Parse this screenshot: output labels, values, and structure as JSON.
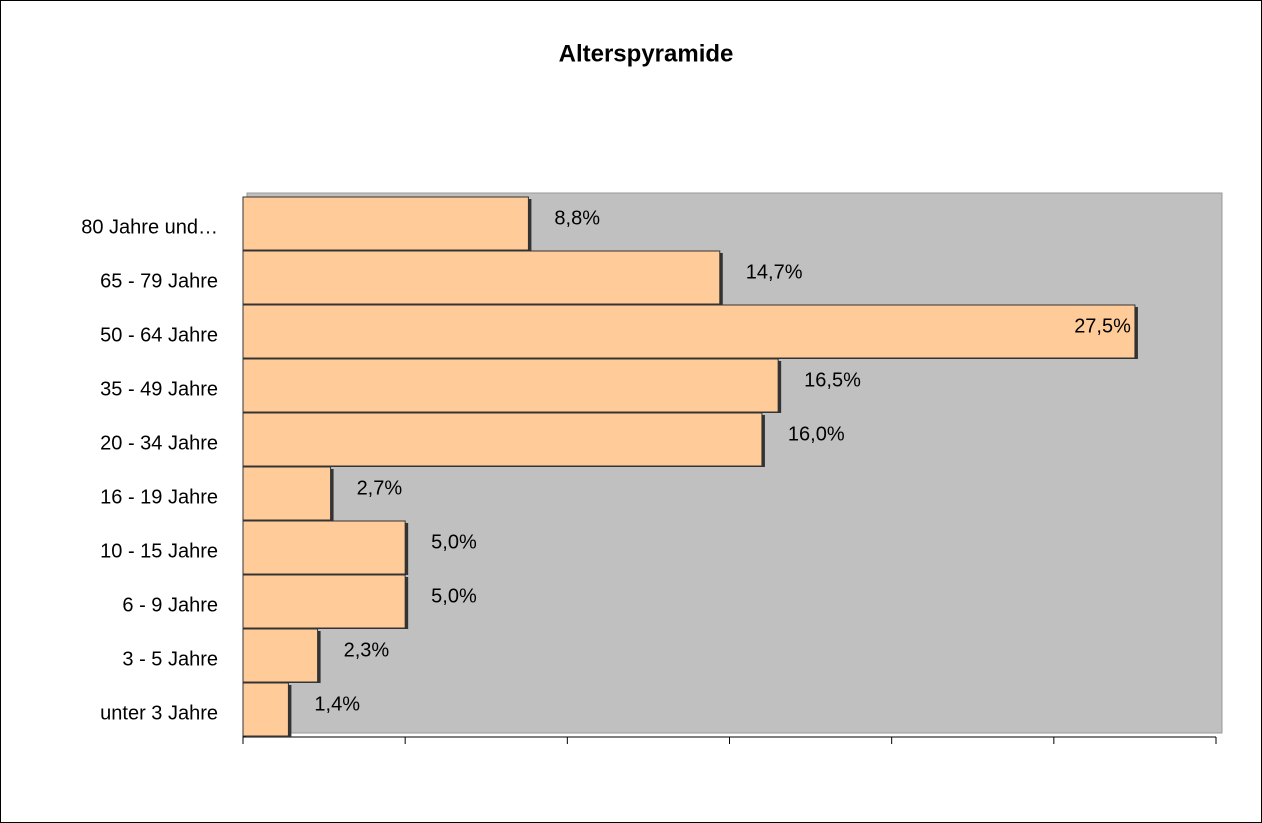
{
  "chart_data": {
    "type": "barh",
    "title": "Alterspyramide",
    "categories": [
      "80 Jahre und…",
      "65 - 79 Jahre",
      "50 - 64 Jahre",
      "35 - 49 Jahre",
      "20 - 34 Jahre",
      "16 - 19 Jahre",
      "10 - 15 Jahre",
      "6 - 9 Jahre",
      "3 - 5 Jahre",
      "unter 3 Jahre"
    ],
    "values": [
      8.8,
      14.7,
      27.5,
      16.5,
      16.0,
      2.7,
      5.0,
      5.0,
      2.3,
      1.4
    ],
    "value_labels": [
      "8,8%",
      "14,7%",
      "27,5%",
      "16,5%",
      "16,0%",
      "2,7%",
      "5,0%",
      "5,0%",
      "2,3%",
      "1,4%"
    ],
    "color": "#ffcc99",
    "plot_background": "#c0c0c0",
    "xlim": [
      0,
      30
    ],
    "xticks": [
      0,
      5,
      10,
      15,
      20,
      25,
      30
    ]
  }
}
